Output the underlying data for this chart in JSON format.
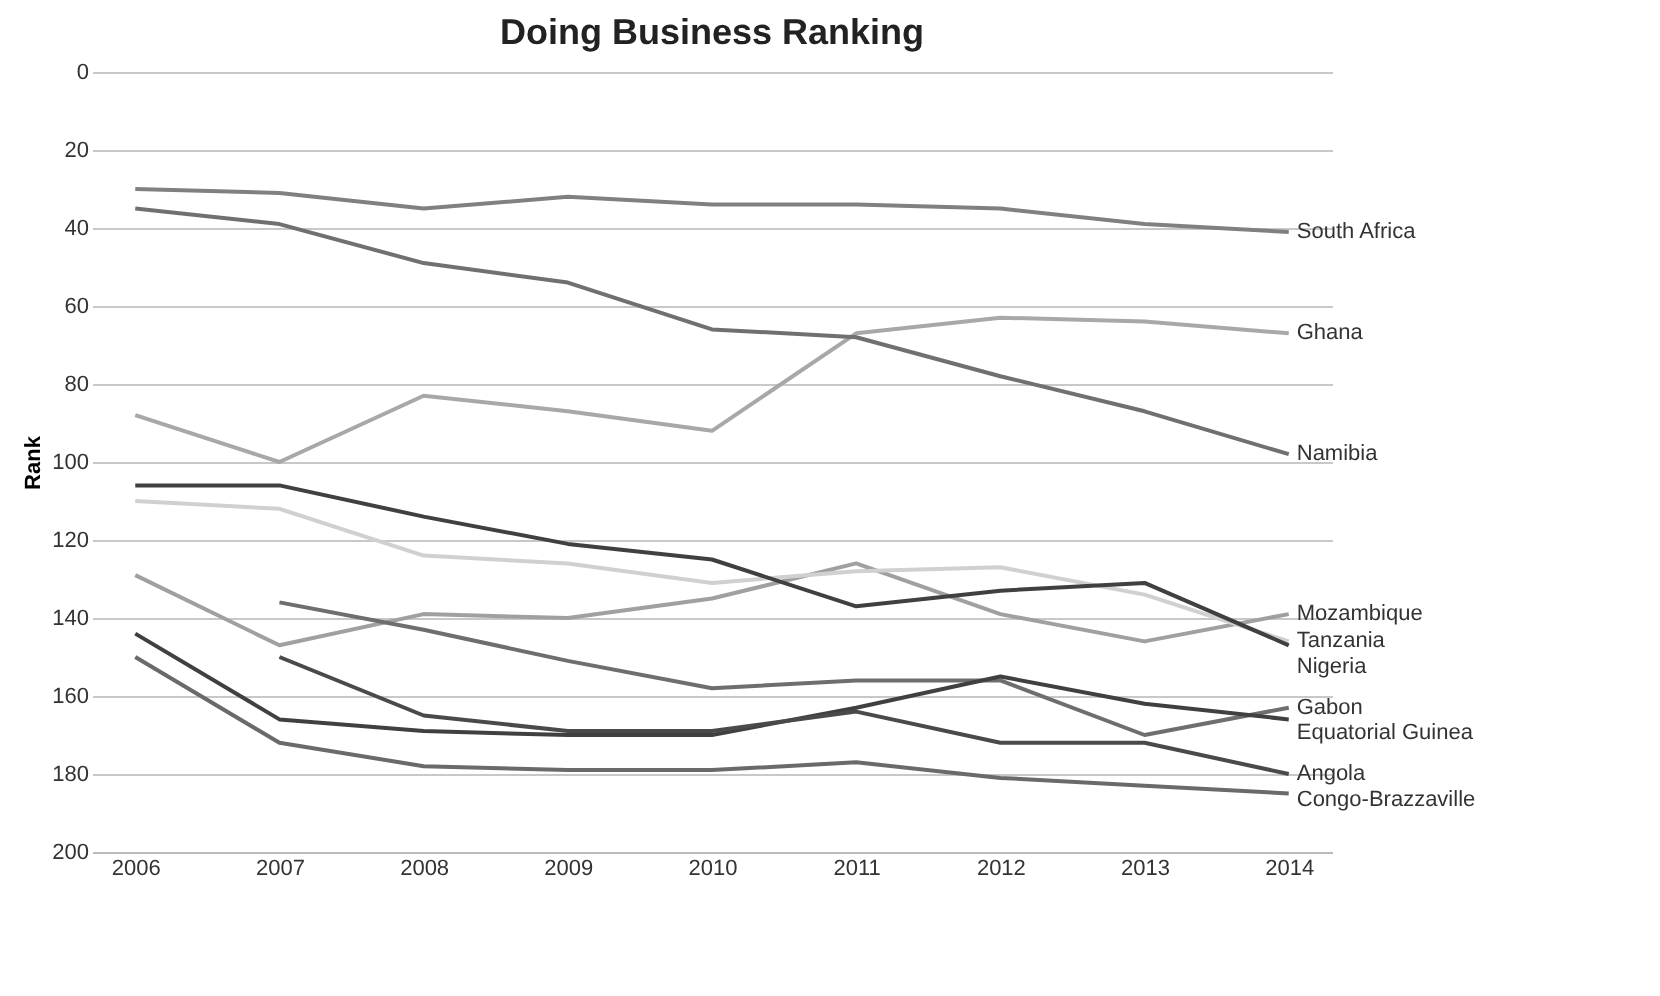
{
  "chart_data": {
    "type": "line",
    "title": "Doing Business Ranking",
    "ylabel": "Rank",
    "categories": [
      "2006",
      "2007",
      "2008",
      "2009",
      "2010",
      "2011",
      "2012",
      "2013",
      "2014"
    ],
    "ylim": [
      200,
      0
    ],
    "yticks": [
      0,
      20,
      40,
      60,
      80,
      100,
      120,
      140,
      160,
      180,
      200
    ],
    "grid": "y",
    "legend": false,
    "series": [
      {
        "name": "South Africa",
        "color": "#808080",
        "values": [
          30,
          31,
          35,
          32,
          34,
          34,
          35,
          39,
          41
        ]
      },
      {
        "name": "Ghana",
        "color": "#a8a8a8",
        "values": [
          88,
          100,
          83,
          87,
          92,
          67,
          63,
          64,
          67
        ]
      },
      {
        "name": "Namibia",
        "color": "#707070",
        "values": [
          35,
          39,
          49,
          54,
          66,
          68,
          78,
          87,
          98
        ]
      },
      {
        "name": "Mozambique",
        "color": "#a0a0a0",
        "values": [
          129,
          147,
          139,
          140,
          135,
          126,
          139,
          146,
          139
        ]
      },
      {
        "name": "Tanzania",
        "color": "#d0d0d0",
        "values": [
          110,
          112,
          124,
          126,
          131,
          128,
          127,
          134,
          146
        ]
      },
      {
        "name": "Nigeria",
        "color": "#404040",
        "values": [
          106,
          106,
          114,
          121,
          125,
          137,
          133,
          131,
          147
        ]
      },
      {
        "name": "Gabon",
        "color": "#6e6e6e",
        "values": [
          null,
          136,
          143,
          151,
          158,
          156,
          156,
          170,
          163
        ]
      },
      {
        "name": "Equatorial Guinea",
        "color": "#404040",
        "values": [
          144,
          166,
          169,
          170,
          170,
          163,
          155,
          162,
          166
        ]
      },
      {
        "name": "Angola",
        "color": "#4a4a4a",
        "values": [
          null,
          150,
          165,
          169,
          169,
          164,
          172,
          172,
          180
        ]
      },
      {
        "name": "Congo-Brazzaville",
        "color": "#6a6a6a",
        "values": [
          150,
          172,
          178,
          179,
          179,
          177,
          181,
          183,
          185
        ]
      }
    ]
  }
}
